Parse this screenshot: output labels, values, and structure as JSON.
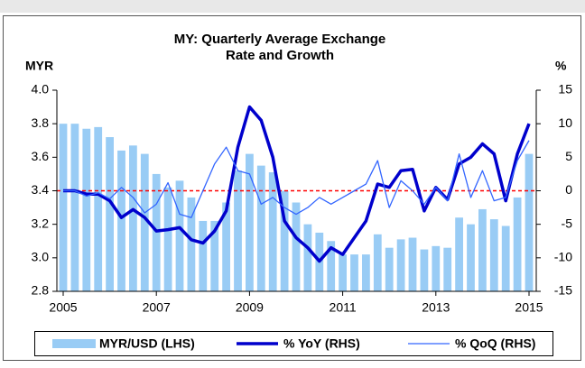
{
  "chart_data": {
    "type": "bar_line",
    "title_lines": [
      "MY: Quarterly Average Exchange",
      "Rate and Growth"
    ],
    "y_axis_label": "MYR",
    "y2_axis_label": "%",
    "x": [
      2005,
      2005.25,
      2005.5,
      2005.75,
      2006,
      2006.25,
      2006.5,
      2006.75,
      2007,
      2007.25,
      2007.5,
      2007.75,
      2008,
      2008.25,
      2008.5,
      2008.75,
      2009,
      2009.25,
      2009.5,
      2009.75,
      2010,
      2010.25,
      2010.5,
      2010.75,
      2011,
      2011.25,
      2011.5,
      2011.75,
      2012,
      2012.25,
      2012.5,
      2012.75,
      2013,
      2013.25,
      2013.5,
      2013.75,
      2014,
      2014.25,
      2014.5,
      2014.75,
      2015
    ],
    "xlim": [
      2005,
      2015
    ],
    "xticks": [
      2005,
      2007,
      2009,
      2011,
      2013,
      2015
    ],
    "ylim": [
      2.8,
      4.0
    ],
    "yticks": [
      {
        "value": 2.8,
        "label": "2.8"
      },
      {
        "value": 3.0,
        "label": "3.0"
      },
      {
        "value": 3.2,
        "label": "3.2"
      },
      {
        "value": 3.4,
        "label": "3.4"
      },
      {
        "value": 3.6,
        "label": "3.6"
      },
      {
        "value": 3.8,
        "label": "3.8"
      },
      {
        "value": 4.0,
        "label": "4.0"
      }
    ],
    "y2lim": [
      -15,
      15
    ],
    "y2ticks": [
      -15,
      -10,
      -5,
      0,
      5,
      10,
      15
    ],
    "reference_line": {
      "axis": "y2",
      "value": 0,
      "color": "#ff0000"
    },
    "series": [
      {
        "name": "MYR/USD (LHS)",
        "kind": "bar",
        "color": "#99ccf5",
        "values": [
          3.8,
          3.8,
          3.77,
          3.78,
          3.72,
          3.64,
          3.67,
          3.62,
          3.5,
          3.42,
          3.46,
          3.36,
          3.22,
          3.22,
          3.33,
          3.52,
          3.62,
          3.55,
          3.51,
          3.4,
          3.33,
          3.2,
          3.15,
          3.1,
          3.02,
          3.02,
          3.02,
          3.14,
          3.06,
          3.11,
          3.12,
          3.05,
          3.07,
          3.06,
          3.24,
          3.2,
          3.29,
          3.23,
          3.19,
          3.36,
          3.62
        ]
      },
      {
        "name": "% YoY (RHS)",
        "kind": "line",
        "axis": "y2",
        "color": "#0000cc",
        "width": 3.5,
        "values": [
          0,
          0,
          -0.5,
          -0.5,
          -1.5,
          -4,
          -2.8,
          -4,
          -6,
          -5.8,
          -5.5,
          -7.3,
          -7.8,
          -6,
          -3,
          6.5,
          12.5,
          10.5,
          5,
          -4.5,
          -7,
          -8.5,
          -10.5,
          -8.5,
          -9.5,
          -7,
          -4.5,
          1,
          0.5,
          3,
          3.2,
          -3,
          0.5,
          -1.3,
          4,
          5,
          7,
          5.5,
          -1.5,
          5.5,
          10
        ]
      },
      {
        "name": "% QoQ (RHS)",
        "kind": "line",
        "axis": "y2",
        "color": "#3366ff",
        "width": 1.3,
        "values": [
          0,
          0,
          -0.8,
          -0.3,
          -1.2,
          0.5,
          -1,
          -3.3,
          -2,
          1.2,
          -3.5,
          -4,
          0,
          4,
          6.5,
          3,
          2.5,
          -2,
          -1,
          -2.5,
          -3.5,
          -2.5,
          -1,
          -2,
          -1,
          0,
          1,
          4.5,
          -2.5,
          1.5,
          0,
          -2,
          0.5,
          -1.5,
          5.5,
          -1,
          3,
          -1.5,
          -1,
          4.5,
          7.5
        ]
      }
    ]
  }
}
